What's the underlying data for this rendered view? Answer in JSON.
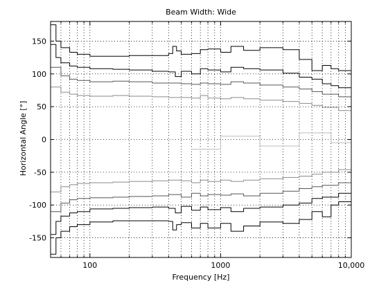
{
  "chart_data": {
    "type": "line",
    "title": "Beam Width: Wide",
    "xlabel": "Frequency [Hz]",
    "ylabel": "Horizontal Angle [°]",
    "x_scale": "log",
    "xlim": [
      50,
      10000
    ],
    "ylim": [
      -180,
      180
    ],
    "grid": true,
    "x_tick_labels": [
      {
        "value": 100,
        "label": "100"
      },
      {
        "value": 1000,
        "label": "1000"
      },
      {
        "value": 10000,
        "label": "10,000"
      }
    ],
    "y_tick_labels": [
      {
        "value": 150,
        "label": "150"
      },
      {
        "value": 100,
        "label": "100"
      },
      {
        "value": 50,
        "label": "50"
      },
      {
        "value": 0,
        "label": "0"
      },
      {
        "value": -50,
        "label": "-50"
      },
      {
        "value": -100,
        "label": "-100"
      },
      {
        "value": -150,
        "label": "-150"
      }
    ],
    "series": [
      {
        "color": "#000000",
        "x": [
          50,
          55,
          60,
          70,
          80,
          100,
          150,
          200,
          300,
          400,
          430,
          460,
          500,
          600,
          700,
          800,
          1000,
          1200,
          1500,
          2000,
          3000,
          4000,
          5000,
          6000,
          7000,
          8000,
          10000
        ],
        "y": [
          175,
          150,
          140,
          133,
          130,
          127,
          127,
          128,
          128,
          131,
          142,
          135,
          130,
          131,
          137,
          138,
          133,
          142,
          136,
          140,
          137,
          122,
          105,
          113,
          108,
          105,
          80
        ]
      },
      {
        "color": "#000000",
        "x": [
          50,
          55,
          60,
          70,
          80,
          100,
          150,
          200,
          300,
          400,
          450,
          500,
          600,
          700,
          800,
          1000,
          1200,
          1500,
          2000,
          3000,
          4000,
          5000,
          6000,
          7000,
          8000,
          10000
        ],
        "y": [
          145,
          125,
          117,
          112,
          110,
          108,
          107,
          106,
          104,
          103,
          96,
          104,
          100,
          108,
          106,
          103,
          110,
          108,
          106,
          101,
          95,
          92,
          85,
          82,
          79,
          80
        ]
      },
      {
        "color": "#555555",
        "x": [
          50,
          60,
          70,
          80,
          100,
          150,
          200,
          300,
          400,
          500,
          600,
          700,
          800,
          1000,
          1200,
          1500,
          2000,
          3000,
          4000,
          5000,
          6000,
          8000,
          10000
        ],
        "y": [
          110,
          97,
          92,
          90,
          88,
          89,
          88,
          86,
          86,
          85,
          84,
          86,
          85,
          84,
          88,
          86,
          83,
          80,
          77,
          73,
          69,
          65,
          58
        ]
      },
      {
        "color": "#8a8a8a",
        "x": [
          50,
          60,
          70,
          80,
          100,
          150,
          200,
          300,
          400,
          500,
          600,
          700,
          800,
          1000,
          1200,
          1500,
          2000,
          3000,
          4000,
          5000,
          6000,
          8000,
          10000
        ],
        "y": [
          80,
          72,
          69,
          67,
          66,
          67,
          66,
          65,
          64,
          64,
          63,
          67,
          63,
          62,
          64,
          62,
          60,
          58,
          55,
          52,
          49,
          44,
          40
        ]
      },
      {
        "color": "#8a8a8a",
        "x": [
          50,
          60,
          70,
          80,
          100,
          150,
          200,
          300,
          400,
          500,
          600,
          700,
          800,
          1000,
          1200,
          1500,
          2000,
          3000,
          4000,
          5000,
          6000,
          8000,
          10000
        ],
        "y": [
          -80,
          -72,
          -69,
          -67,
          -66,
          -65,
          -64,
          -63,
          -62,
          -63,
          -66,
          -62,
          -64,
          -62,
          -64,
          -62,
          -60,
          -58,
          -56,
          -53,
          -50,
          -46,
          -42
        ]
      },
      {
        "color": "#555555",
        "x": [
          50,
          60,
          70,
          80,
          100,
          150,
          200,
          300,
          400,
          500,
          600,
          700,
          800,
          1000,
          1200,
          1500,
          2000,
          3000,
          4000,
          5000,
          6000,
          8000,
          10000
        ],
        "y": [
          -110,
          -97,
          -92,
          -90,
          -89,
          -88,
          -87,
          -86,
          -84,
          -88,
          -82,
          -86,
          -84,
          -85,
          -83,
          -86,
          -82,
          -79,
          -75,
          -72,
          -70,
          -66,
          -60
        ]
      },
      {
        "color": "#000000",
        "x": [
          50,
          55,
          60,
          70,
          80,
          100,
          150,
          200,
          300,
          400,
          450,
          500,
          600,
          700,
          800,
          1000,
          1200,
          1500,
          2000,
          3000,
          4000,
          5000,
          6000,
          8000,
          10000
        ],
        "y": [
          -145,
          -125,
          -117,
          -112,
          -110,
          -106,
          -105,
          -104,
          -103,
          -105,
          -112,
          -102,
          -108,
          -103,
          -107,
          -104,
          -110,
          -105,
          -103,
          -100,
          -97,
          -90,
          -88,
          -82,
          -72
        ]
      },
      {
        "color": "#000000",
        "x": [
          50,
          55,
          60,
          70,
          80,
          100,
          150,
          200,
          300,
          400,
          430,
          460,
          500,
          600,
          700,
          800,
          1000,
          1200,
          1500,
          2000,
          3000,
          4000,
          5000,
          6000,
          7000,
          8000,
          10000
        ],
        "y": [
          -175,
          -150,
          -140,
          -133,
          -130,
          -126,
          -124,
          -124,
          -124,
          -125,
          -138,
          -130,
          -127,
          -135,
          -128,
          -135,
          -128,
          -140,
          -132,
          -126,
          -128,
          -122,
          -110,
          -118,
          -100,
          -95,
          -70
        ]
      },
      {
        "color": "#bbbbbb",
        "x": [
          600,
          1000,
          2000,
          4000,
          7000,
          10000
        ],
        "y": [
          -15,
          5,
          -10,
          10,
          -5,
          8
        ]
      }
    ]
  }
}
